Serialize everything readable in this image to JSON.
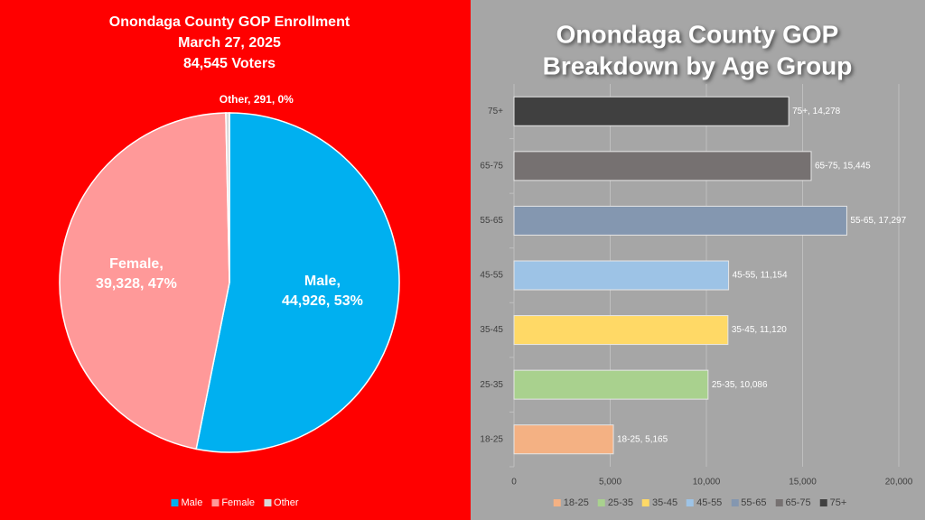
{
  "chart_data": [
    {
      "type": "pie",
      "title": [
        "Onondaga County GOP Enrollment",
        "March 27, 2025",
        "84,545 Voters"
      ],
      "categories": [
        "Male",
        "Female",
        "Other"
      ],
      "values": [
        44926,
        39328,
        291
      ],
      "value_labels": [
        "Male,\n44,926, 53%",
        "Female,\n39,328, 47%",
        "Other, 291, 0%"
      ],
      "colors": [
        "#00b0f0",
        "#ff9999",
        "#d9d9d9"
      ],
      "legend": "bottom"
    },
    {
      "type": "bar",
      "orientation": "horizontal",
      "title": [
        "Onondaga County GOP",
        "Breakdown by Age Group"
      ],
      "categories": [
        "18-25",
        "25-35",
        "35-45",
        "45-55",
        "55-65",
        "65-75",
        "75+"
      ],
      "values": [
        5165,
        10086,
        11120,
        11154,
        17297,
        15445,
        14278
      ],
      "value_labels": [
        "18-25, 5,165",
        "25-35, 10,086",
        "35-45, 11,120",
        "45-55, 11,154",
        "55-65, 17,297",
        "65-75, 15,445",
        "75+, 14,278"
      ],
      "colors": [
        "#f4b183",
        "#a9d18e",
        "#ffd966",
        "#9dc3e6",
        "#8497b0",
        "#767171",
        "#404040"
      ],
      "xlim": [
        0,
        20000
      ],
      "xticks": [
        0,
        {
          "value": 5000,
          "label": "5,000"
        },
        {
          "value": 10000,
          "label": "10,000"
        },
        {
          "value": 15000,
          "label": "15,000"
        },
        {
          "value": 20000,
          "label": "20,000"
        }
      ],
      "grid": true,
      "legend": "bottom"
    }
  ]
}
